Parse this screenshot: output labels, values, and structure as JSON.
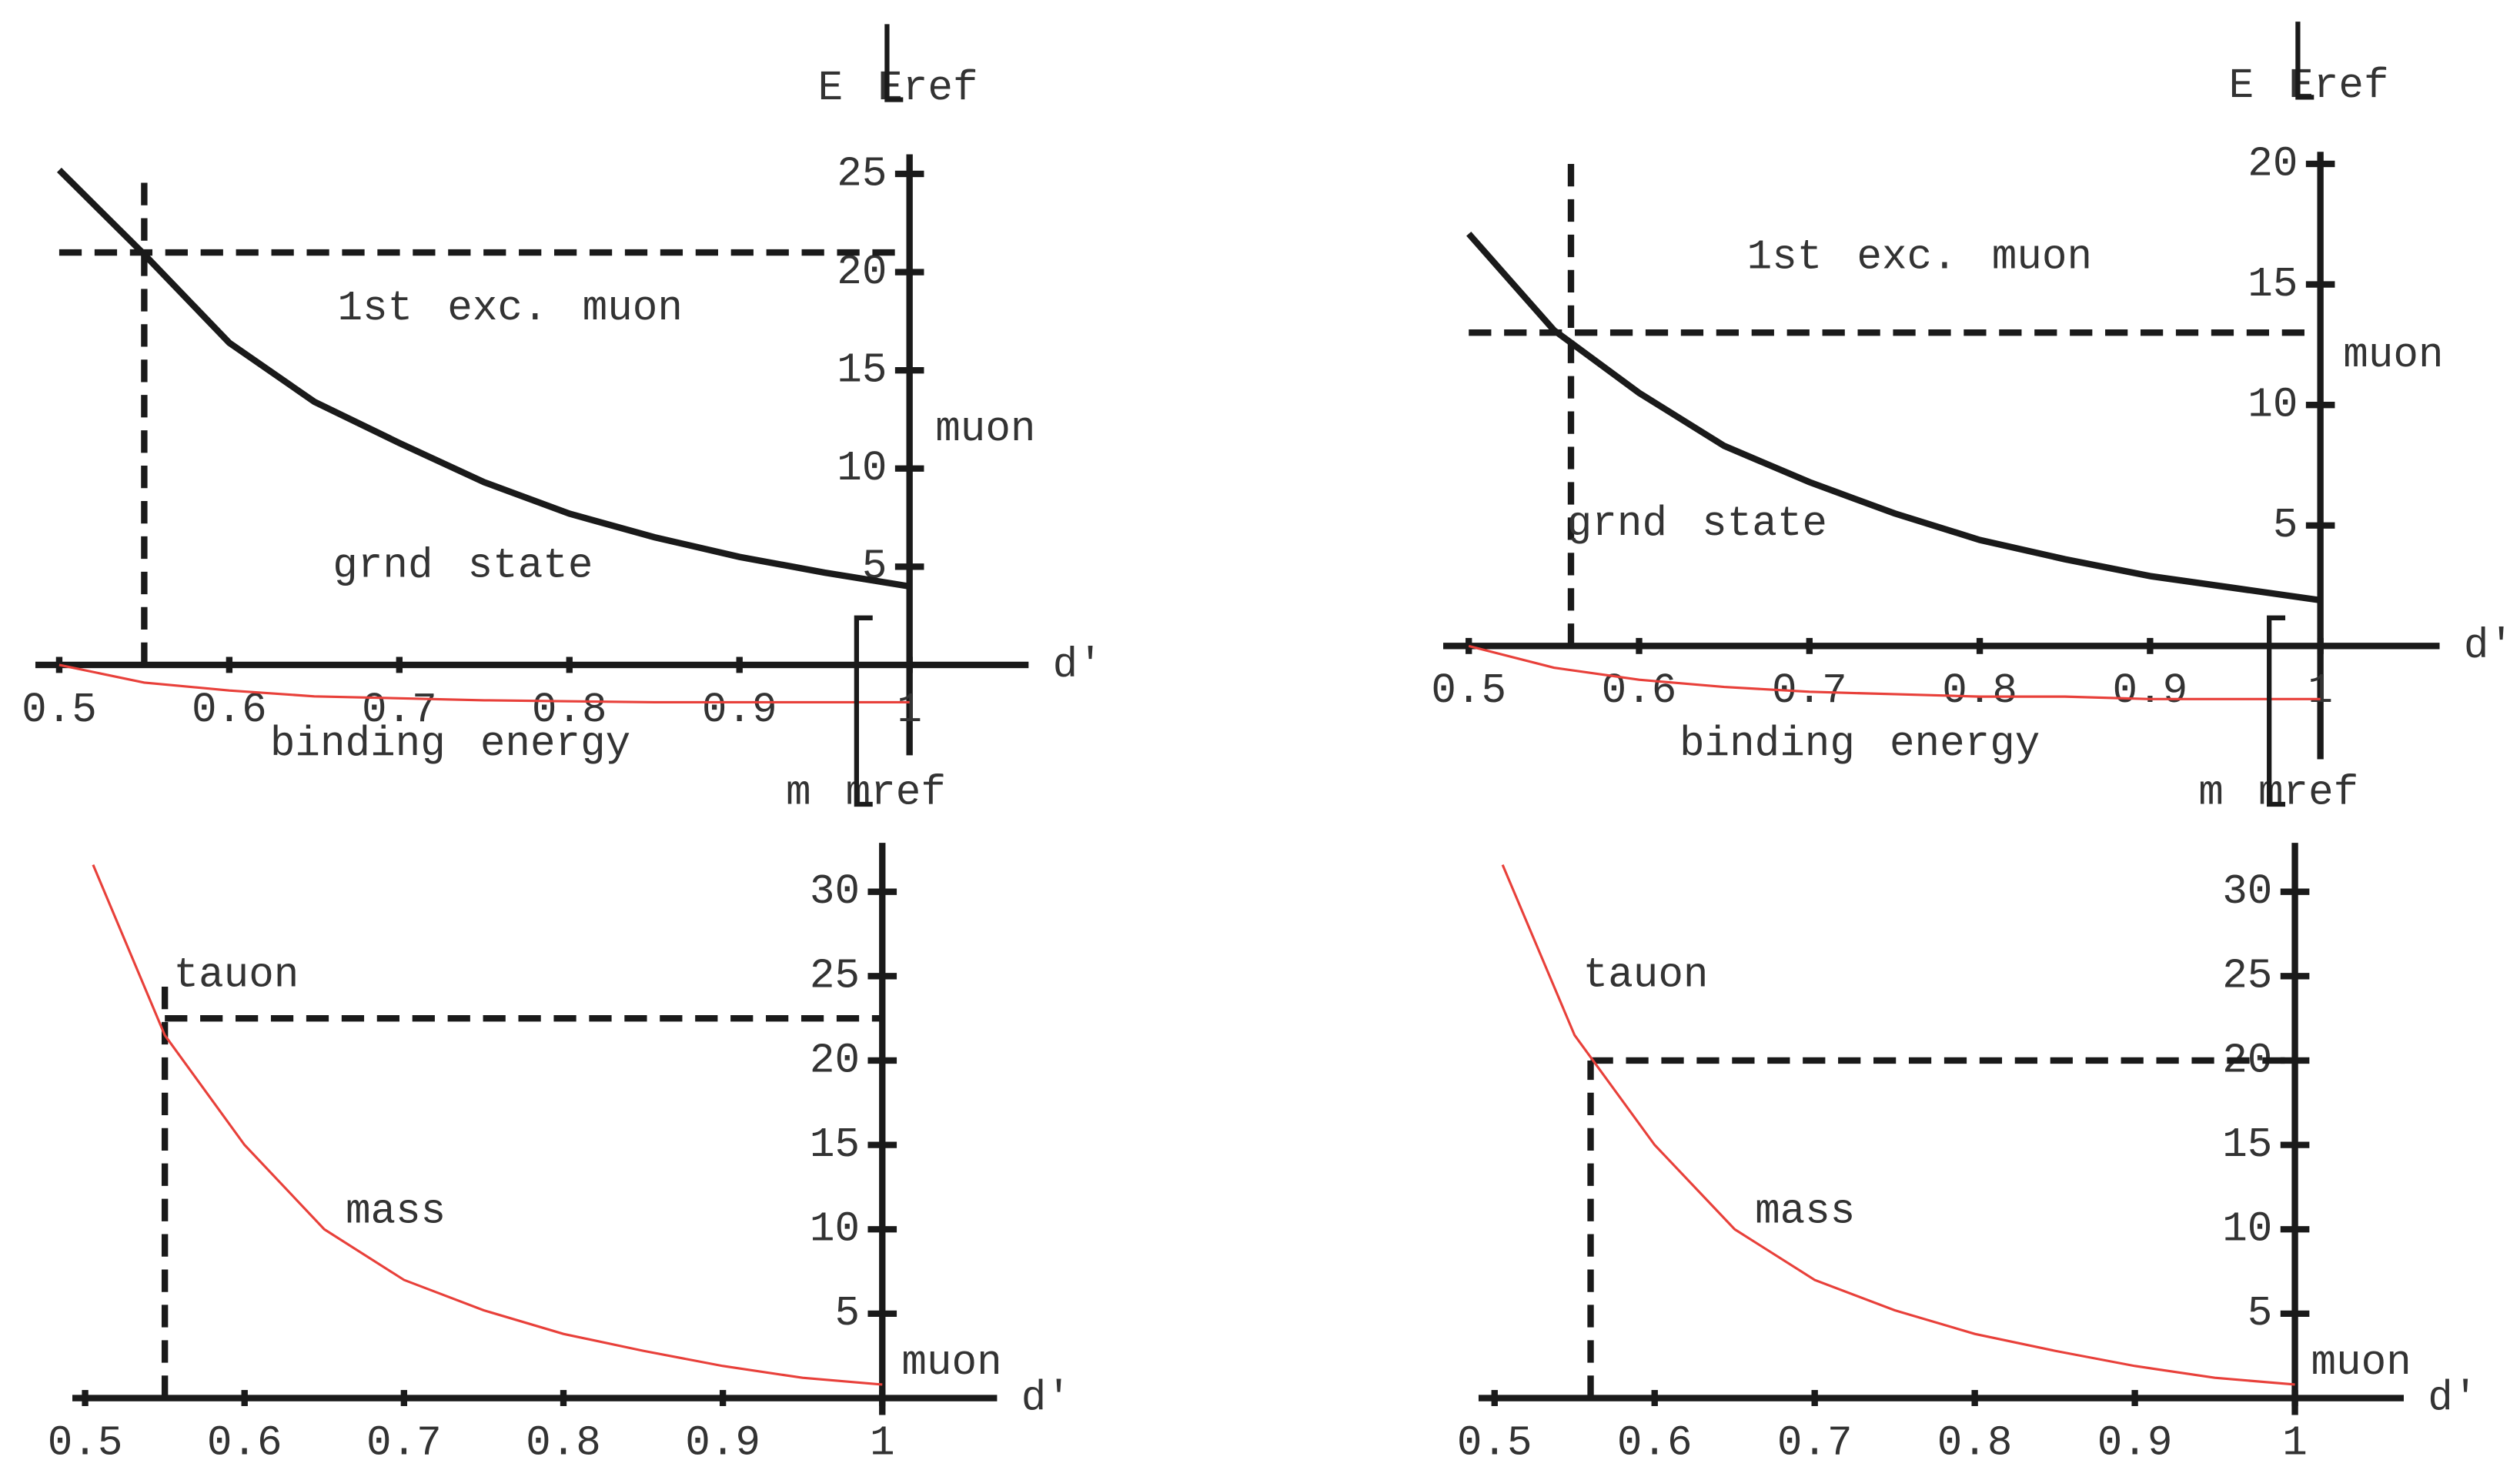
{
  "chart_data": [
    {
      "type": "line",
      "y_label": "E Eref",
      "x_label": "d'",
      "xlim": [
        0.486,
        1.07
      ],
      "ylim": [
        -4.6,
        26
      ],
      "xticks": [
        0.5,
        0.6,
        0.7,
        0.8,
        0.9,
        1
      ],
      "yticks": [
        5,
        10,
        15,
        20,
        25
      ],
      "x": [
        0.5,
        0.55,
        0.6,
        0.65,
        0.7,
        0.75,
        0.8,
        0.85,
        0.9,
        0.95,
        1
      ],
      "series": [
        {
          "color": "#1a1a1a",
          "values": [
            25.2,
            20.9,
            16.4,
            13.4,
            11.3,
            9.3,
            7.7,
            6.5,
            5.5,
            4.7,
            4.0
          ]
        },
        {
          "color": "#e8403a",
          "values": [
            0,
            -0.9,
            -1.3,
            -1.6,
            -1.7,
            -1.8,
            -1.85,
            -1.9,
            -1.9,
            -1.9,
            -1.9
          ]
        }
      ],
      "dashed": {
        "vline_x": 0.55,
        "vline_top": 25.2,
        "hline_y": 21,
        "hline_from": 0.5
      },
      "annotations": [
        "1st exc. muon",
        "grnd state",
        "binding energy",
        "muon"
      ]
    },
    {
      "type": "line",
      "y_label": "E Eref",
      "x_label": "d'",
      "xlim": [
        0.485,
        1.07
      ],
      "ylim": [
        -4.7,
        20.5
      ],
      "xticks": [
        0.5,
        0.6,
        0.7,
        0.8,
        0.9,
        1
      ],
      "yticks": [
        5,
        10,
        15,
        20
      ],
      "x": [
        0.5,
        0.55,
        0.6,
        0.65,
        0.7,
        0.75,
        0.8,
        0.85,
        0.9,
        0.95,
        1
      ],
      "series": [
        {
          "color": "#1a1a1a",
          "values": [
            17.1,
            13.1,
            10.5,
            8.3,
            6.8,
            5.5,
            4.4,
            3.6,
            2.9,
            2.4,
            1.9
          ]
        },
        {
          "color": "#e8403a",
          "values": [
            0,
            -0.9,
            -1.4,
            -1.7,
            -1.9,
            -2.0,
            -2.1,
            -2.1,
            -2.2,
            -2.2,
            -2.2
          ]
        }
      ],
      "dashed": {
        "vline_x": 0.56,
        "vline_top": 20.1,
        "hline_y": 13,
        "hline_from": 0.5
      },
      "annotations": [
        "1st exc. muon",
        "grnd state",
        "binding energy",
        "muon"
      ]
    },
    {
      "type": "line",
      "y_label": "m mref",
      "x_label": "d'",
      "xlim": [
        0.492,
        1.072
      ],
      "ylim": [
        -1,
        32.9
      ],
      "xticks": [
        0.5,
        0.6,
        0.7,
        0.8,
        0.9,
        1
      ],
      "yticks": [
        5,
        10,
        15,
        20,
        25,
        30
      ],
      "x": [
        0.505,
        0.55,
        0.6,
        0.65,
        0.7,
        0.75,
        0.8,
        0.85,
        0.9,
        0.95,
        1
      ],
      "series": [
        {
          "color": "#e8403a",
          "values": [
            31.6,
            21.5,
            15.0,
            10.0,
            7.0,
            5.2,
            3.8,
            2.8,
            1.9,
            1.2,
            0.8
          ]
        }
      ],
      "dashed": {
        "vline_x": 0.55,
        "vline_top": 25,
        "hline_y": 22.5,
        "hline_from": 0.55
      },
      "annotations": [
        "tauon",
        "mass",
        "muon"
      ]
    },
    {
      "type": "line",
      "y_label": "m mref",
      "x_label": "d'",
      "xlim": [
        0.49,
        1.068
      ],
      "ylim": [
        -1,
        32.9
      ],
      "xticks": [
        0.5,
        0.6,
        0.7,
        0.8,
        0.9,
        1
      ],
      "yticks": [
        5,
        10,
        15,
        20,
        25,
        30
      ],
      "x": [
        0.505,
        0.55,
        0.6,
        0.65,
        0.7,
        0.75,
        0.8,
        0.85,
        0.9,
        0.95,
        1
      ],
      "series": [
        {
          "color": "#e8403a",
          "values": [
            31.6,
            21.5,
            15.0,
            10.0,
            7.0,
            5.2,
            3.8,
            2.8,
            1.9,
            1.2,
            0.8
          ]
        }
      ],
      "dashed": {
        "vline_x": 0.56,
        "vline_top": 20,
        "hline_y": 20,
        "hline_from": 0.56
      },
      "annotations": [
        "tauon",
        "mass",
        "muon"
      ]
    }
  ]
}
